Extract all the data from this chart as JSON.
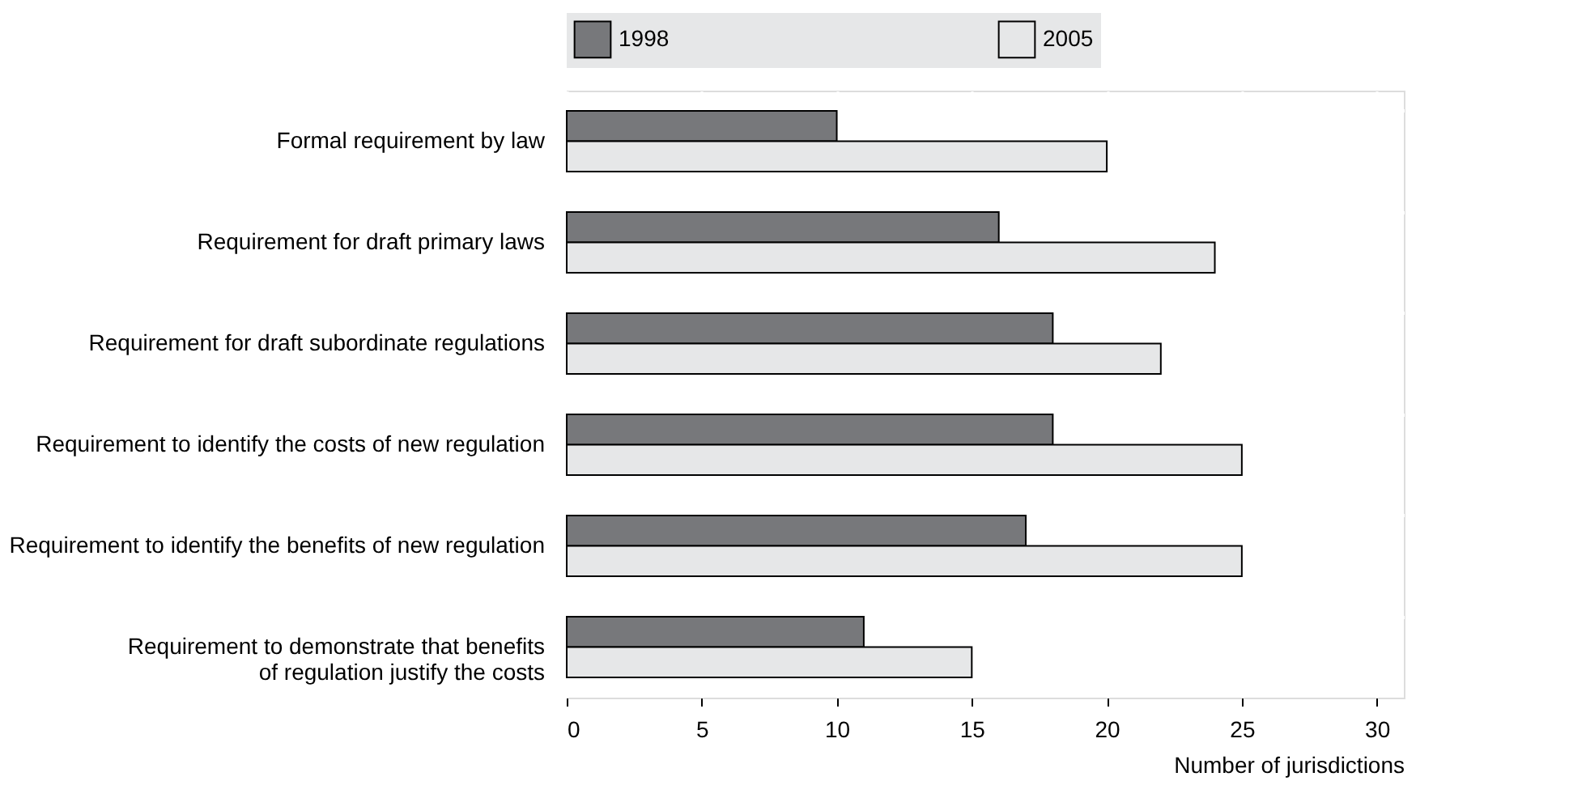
{
  "chart_data": {
    "type": "bar",
    "orientation": "horizontal",
    "xlabel": "Number of jurisdictions",
    "categories": [
      "Formal requirement by law",
      "Requirement for draft primary laws",
      "Requirement for draft subordinate regulations",
      "Requirement to identify the costs of new regulation",
      "Requirement to identify the benefits of new regulation",
      "Requirement to demonstrate that benefits\nof regulation justify the costs"
    ],
    "series": [
      {
        "name": "1998",
        "color": "#77787b",
        "values": [
          10,
          16,
          18,
          18,
          17,
          11
        ]
      },
      {
        "name": "2005",
        "color": "#e6e7e8",
        "values": [
          20,
          24,
          22,
          25,
          25,
          15
        ]
      }
    ],
    "xlim": [
      0,
      31
    ],
    "xticks": [
      0,
      5,
      10,
      15,
      20,
      25,
      30
    ],
    "grid": true,
    "legend": "top"
  }
}
